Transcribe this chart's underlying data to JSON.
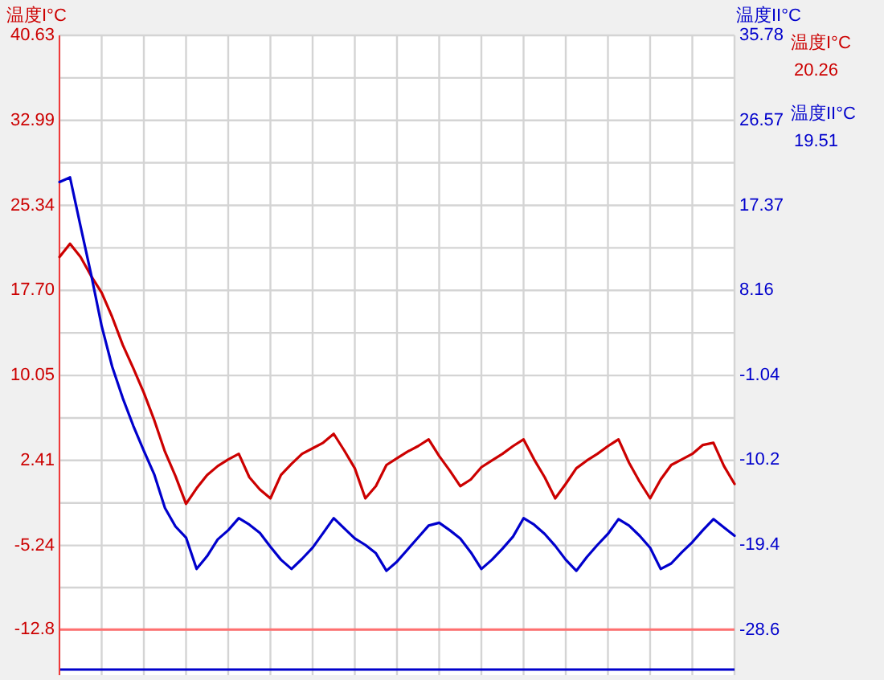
{
  "chart_data": {
    "type": "line",
    "ylabel": "温度I°C",
    "y2label": "温度II°C",
    "categories": [
      null,
      null,
      null,
      null,
      null,
      null,
      null,
      null,
      null,
      null,
      null,
      null,
      null,
      null,
      null,
      null,
      null,
      null,
      null,
      null,
      null,
      null,
      null,
      null,
      null,
      null,
      null,
      null,
      null,
      null,
      null,
      null,
      null,
      null,
      null,
      null,
      null,
      null,
      null,
      null,
      null,
      null,
      null,
      null,
      null,
      null,
      null,
      null,
      null,
      null,
      null,
      null,
      null,
      null,
      null,
      null,
      null,
      null,
      null,
      null,
      null,
      null,
      null,
      null,
      null
    ],
    "ylim": [
      -16.9,
      40.63
    ],
    "yticks": [
      40.63,
      {
        "value": 36.81,
        "label": null
      },
      32.99,
      {
        "value": 29.17,
        "label": null
      },
      25.34,
      {
        "value": 21.52,
        "label": null
      },
      {
        "value": 17.7,
        "label": "17.70"
      },
      {
        "value": 13.88,
        "label": null
      },
      10.05,
      {
        "value": 6.23,
        "label": null
      },
      2.41,
      {
        "value": -1.42,
        "label": null
      },
      -5.24,
      {
        "value": -9.02,
        "label": null
      },
      -12.8
    ],
    "y2lim": [
      -33.5,
      35.78
    ],
    "y2ticks": [
      35.78,
      26.57,
      17.37,
      8.16,
      -1.04,
      -10.2,
      -19.4,
      -28.6
    ],
    "grid": true,
    "annotations": [
      "20.26",
      "19.51"
    ],
    "ref_lines": [
      {
        "axis": "y",
        "value": -12.8,
        "label": null,
        "color": "#ff7070"
      },
      {
        "axis": "y2",
        "value": -32.9,
        "label": null,
        "color": "#0000cc"
      }
    ],
    "series": [
      {
        "name": "温度I°C",
        "color": "#cc0000",
        "values": [
          20.7,
          21.9,
          20.7,
          19.0,
          17.5,
          15.3,
          12.8,
          10.7,
          8.5,
          6.0,
          3.2,
          1.0,
          -1.5,
          -0.1,
          1.1,
          1.9,
          2.5,
          3.0,
          0.9,
          -0.2,
          -1.0,
          1.1,
          2.1,
          3.0,
          3.5,
          4.0,
          4.8,
          3.3,
          1.7,
          -1.0,
          0.1,
          2.0,
          2.6,
          3.2,
          3.7,
          4.3,
          2.8,
          1.5,
          0.1,
          0.7,
          1.8,
          2.4,
          3.0,
          3.7,
          4.3,
          2.5,
          0.9,
          -1.0,
          0.3,
          1.7,
          2.4,
          3.0,
          3.7,
          4.3,
          2.2,
          0.5,
          -1.0,
          0.7,
          2.0,
          2.5,
          3.0,
          3.8,
          4.0,
          1.9,
          0.3
        ]
      },
      {
        "name": "温度II°C",
        "color": "#0000cc",
        "axis": "y2",
        "values": [
          19.9,
          20.4,
          15.1,
          9.9,
          4.3,
          -0.1,
          -3.5,
          -6.5,
          -9.2,
          -11.8,
          -15.4,
          -17.4,
          -18.6,
          -22.0,
          -20.6,
          -18.8,
          -17.8,
          -16.5,
          -17.2,
          -18.1,
          -19.6,
          -21.0,
          -22.0,
          -20.9,
          -19.7,
          -18.1,
          -16.5,
          -17.6,
          -18.7,
          -19.4,
          -20.3,
          -22.2,
          -21.2,
          -19.9,
          -18.6,
          -17.3,
          -17.0,
          -17.8,
          -18.7,
          -20.2,
          -22.0,
          -21.0,
          -19.8,
          -18.5,
          -16.5,
          -17.2,
          -18.2,
          -19.5,
          -21.0,
          -22.2,
          -20.7,
          -19.4,
          -18.2,
          -16.6,
          -17.3,
          -18.4,
          -19.7,
          -22.0,
          -21.4,
          -20.2,
          -19.1,
          -17.8,
          -16.6,
          -17.5,
          -18.4
        ]
      }
    ]
  }
}
